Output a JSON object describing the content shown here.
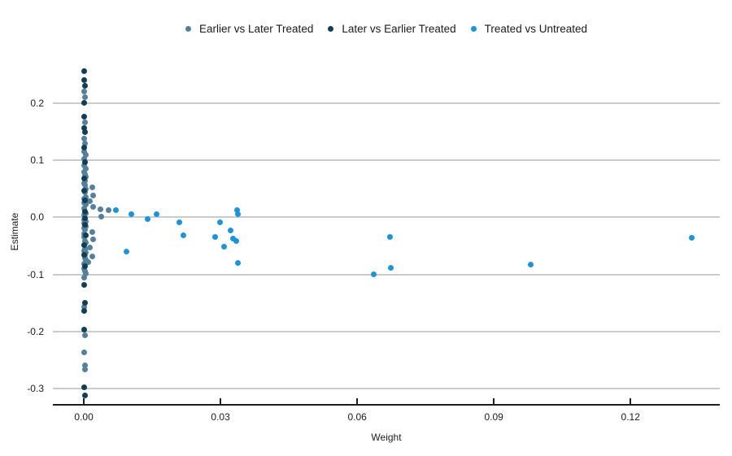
{
  "chart_data": {
    "type": "scatter",
    "title": "",
    "xlabel": "Weight",
    "ylabel": "Estimate",
    "legend_position": "top",
    "grid": "horizontal-only",
    "grid_color": "#cbcbcb",
    "axis_line_color": "#1d1d1d",
    "text_color": "#1a1a1a",
    "x_domain": [
      -0.0068,
      0.1396
    ],
    "y_domain": [
      -0.327,
      0.274
    ],
    "x_ticks": [
      {
        "value": 0.0,
        "label": "0.00"
      },
      {
        "value": 0.03,
        "label": "0.03"
      },
      {
        "value": 0.06,
        "label": "0.06"
      },
      {
        "value": 0.09,
        "label": "0.09"
      },
      {
        "value": 0.12,
        "label": "0.12"
      }
    ],
    "y_gridlines": [
      {
        "value": 0.2,
        "label": "0.2"
      },
      {
        "value": 0.1,
        "label": "0.1"
      },
      {
        "value": 0.0,
        "label": "0.0"
      },
      {
        "value": -0.1,
        "label": "-0.1"
      },
      {
        "value": -0.2,
        "label": "-0.2"
      },
      {
        "value": -0.3,
        "label": "-0.3"
      }
    ],
    "series": [
      {
        "name": "Earlier vs Later Treated",
        "color": "#53809c",
        "points": [
          [
            0.0001,
            0.221
          ],
          [
            0.0002,
            0.211
          ],
          [
            0.0002,
            0.166
          ],
          [
            0.0,
            0.138
          ],
          [
            0.0002,
            0.13
          ],
          [
            0.0,
            0.115
          ],
          [
            0.0004,
            0.109
          ],
          [
            0.0001,
            0.103
          ],
          [
            0.0,
            0.091
          ],
          [
            0.0004,
            0.086
          ],
          [
            0.0001,
            0.08
          ],
          [
            0.0002,
            0.075
          ],
          [
            0.0005,
            0.071
          ],
          [
            0.0003,
            0.064
          ],
          [
            0.0001,
            0.06
          ],
          [
            0.0003,
            0.057
          ],
          [
            0.0018,
            0.053
          ],
          [
            0.0004,
            0.05
          ],
          [
            0.0002,
            0.047
          ],
          [
            0.0002,
            0.044
          ],
          [
            0.0021,
            0.039
          ],
          [
            0.0005,
            0.036
          ],
          [
            0.0001,
            0.033
          ],
          [
            0.0004,
            0.03
          ],
          [
            0.0013,
            0.028
          ],
          [
            0.0,
            0.025
          ],
          [
            0.0004,
            0.022
          ],
          [
            0.0021,
            0.019
          ],
          [
            0.0001,
            0.016
          ],
          [
            0.0036,
            0.0135
          ],
          [
            0.0054,
            0.012
          ],
          [
            0.0002,
            0.01
          ],
          [
            0.0005,
            0.007
          ],
          [
            0.0001,
            0.004
          ],
          [
            0.0038,
            0.001
          ],
          [
            0.0,
            -0.004
          ],
          [
            0.0004,
            -0.007
          ],
          [
            0.0001,
            -0.01
          ],
          [
            0.0003,
            -0.013
          ],
          [
            0.0005,
            -0.016
          ],
          [
            0.0,
            -0.019
          ],
          [
            0.0003,
            -0.022
          ],
          [
            0.0018,
            -0.026
          ],
          [
            0.0001,
            -0.029
          ],
          [
            0.0,
            -0.035
          ],
          [
            0.0021,
            -0.039
          ],
          [
            0.0002,
            -0.042
          ],
          [
            0.0005,
            -0.045
          ],
          [
            0.0001,
            -0.049
          ],
          [
            0.0014,
            -0.053
          ],
          [
            0.0003,
            -0.056
          ],
          [
            0.0,
            -0.059
          ],
          [
            0.0004,
            -0.062
          ],
          [
            0.0002,
            -0.065
          ],
          [
            0.0018,
            -0.068
          ],
          [
            0.0002,
            -0.071
          ],
          [
            0.0005,
            -0.074
          ],
          [
            0.0009,
            -0.079
          ],
          [
            0.0001,
            -0.082
          ],
          [
            0.0,
            -0.09
          ],
          [
            0.0002,
            -0.094
          ],
          [
            0.0004,
            -0.098
          ],
          [
            0.0001,
            -0.105
          ],
          [
            0.0001,
            -0.157
          ],
          [
            0.0002,
            -0.206
          ],
          [
            0.0001,
            -0.236
          ],
          [
            0.0002,
            -0.259
          ],
          [
            0.0003,
            -0.266
          ]
        ]
      },
      {
        "name": "Later vs Earlier Treated",
        "color": "#133d53",
        "points": [
          [
            0.0,
            0.256
          ],
          [
            0.0001,
            0.24
          ],
          [
            0.0002,
            0.23
          ],
          [
            0.0,
            0.2
          ],
          [
            0.0001,
            0.176
          ],
          [
            0.0,
            0.157
          ],
          [
            0.0002,
            0.149
          ],
          [
            0.0001,
            0.122
          ],
          [
            0.0002,
            0.096
          ],
          [
            0.0,
            0.068
          ],
          [
            0.0,
            0.047
          ],
          [
            0.0003,
            0.03
          ],
          [
            0.0002,
            0.01
          ],
          [
            0.0003,
            -0.001
          ],
          [
            0.0002,
            -0.013
          ],
          [
            0.0004,
            -0.032
          ],
          [
            0.0001,
            -0.048
          ],
          [
            0.0001,
            -0.065
          ],
          [
            0.0003,
            -0.086
          ],
          [
            0.0,
            -0.118
          ],
          [
            0.0002,
            -0.15
          ],
          [
            0.0,
            -0.164
          ],
          [
            0.0001,
            -0.196
          ],
          [
            0.0,
            -0.298
          ],
          [
            0.0002,
            -0.312
          ]
        ]
      },
      {
        "name": "Treated vs Untreated",
        "color": "#1d93d8",
        "points": [
          [
            0.007,
            0.013
          ],
          [
            0.0105,
            0.005
          ],
          [
            0.014,
            -0.003
          ],
          [
            0.016,
            0.005
          ],
          [
            0.0209,
            -0.008
          ],
          [
            0.0218,
            -0.032
          ],
          [
            0.0298,
            -0.009
          ],
          [
            0.0289,
            -0.034
          ],
          [
            0.0322,
            -0.023
          ],
          [
            0.0327,
            -0.037
          ],
          [
            0.0334,
            -0.041
          ],
          [
            0.0307,
            -0.051
          ],
          [
            0.0093,
            -0.06
          ],
          [
            0.0336,
            0.013
          ],
          [
            0.0338,
            0.006
          ],
          [
            0.0339,
            -0.08
          ],
          [
            0.0672,
            -0.035
          ],
          [
            0.0637,
            -0.0995
          ],
          [
            0.0674,
            -0.089
          ],
          [
            0.0981,
            -0.083
          ],
          [
            0.1334,
            -0.036
          ]
        ]
      }
    ]
  }
}
